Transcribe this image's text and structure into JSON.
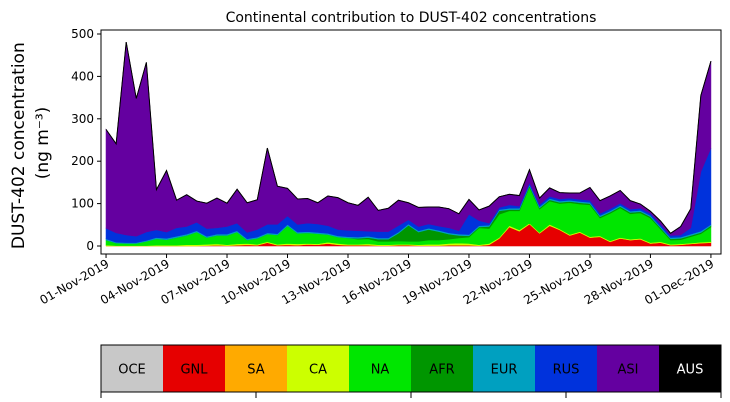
{
  "chart_data": {
    "type": "area",
    "stacked": true,
    "title": "Continental contribution to DUST-402 concentrations",
    "ylabel_line1": "DUST-402 concentration",
    "ylabel_line2": "(ng m⁻³)",
    "ylim": [
      0,
      500
    ],
    "yticks": [
      0,
      100,
      200,
      300,
      400,
      500
    ],
    "xlim": [
      "2019-10-31T18:00",
      "2019-12-01T12:00"
    ],
    "xticks": [
      "2019-11-01",
      "2019-11-04",
      "2019-11-07",
      "2019-11-10",
      "2019-11-13",
      "2019-11-16",
      "2019-11-19",
      "2019-11-22",
      "2019-11-25",
      "2019-11-28",
      "2019-12-01"
    ],
    "xtick_labels": [
      "01-Nov-2019",
      "04-Nov-2019",
      "07-Nov-2019",
      "10-Nov-2019",
      "13-Nov-2019",
      "16-Nov-2019",
      "19-Nov-2019",
      "22-Nov-2019",
      "25-Nov-2019",
      "28-Nov-2019",
      "01-Dec-2019"
    ],
    "grid": false,
    "outline_color": "#000000",
    "x": [
      "2019-11-01T00:00",
      "2019-11-01T12:00",
      "2019-11-02T00:00",
      "2019-11-02T12:00",
      "2019-11-03T00:00",
      "2019-11-03T12:00",
      "2019-11-04T00:00",
      "2019-11-04T12:00",
      "2019-11-05T00:00",
      "2019-11-05T12:00",
      "2019-11-06T00:00",
      "2019-11-06T12:00",
      "2019-11-07T00:00",
      "2019-11-07T12:00",
      "2019-11-08T00:00",
      "2019-11-08T12:00",
      "2019-11-09T00:00",
      "2019-11-09T12:00",
      "2019-11-10T00:00",
      "2019-11-10T12:00",
      "2019-11-11T00:00",
      "2019-11-11T12:00",
      "2019-11-12T00:00",
      "2019-11-12T12:00",
      "2019-11-13T00:00",
      "2019-11-13T12:00",
      "2019-11-14T00:00",
      "2019-11-14T12:00",
      "2019-11-15T00:00",
      "2019-11-15T12:00",
      "2019-11-16T00:00",
      "2019-11-16T12:00",
      "2019-11-17T00:00",
      "2019-11-17T12:00",
      "2019-11-18T00:00",
      "2019-11-18T12:00",
      "2019-11-19T00:00",
      "2019-11-19T12:00",
      "2019-11-20T00:00",
      "2019-11-20T12:00",
      "2019-11-21T00:00",
      "2019-11-21T12:00",
      "2019-11-22T00:00",
      "2019-11-22T12:00",
      "2019-11-23T00:00",
      "2019-11-23T12:00",
      "2019-11-24T00:00",
      "2019-11-24T12:00",
      "2019-11-25T00:00",
      "2019-11-25T12:00",
      "2019-11-26T00:00",
      "2019-11-26T12:00",
      "2019-11-27T00:00",
      "2019-11-27T12:00",
      "2019-11-28T00:00",
      "2019-11-28T12:00",
      "2019-11-29T00:00",
      "2019-11-29T12:00",
      "2019-11-30T00:00",
      "2019-11-30T12:00",
      "2019-12-01T00:00"
    ],
    "series": [
      {
        "name": "OCE",
        "color": "#c8c8c8",
        "values": [
          0,
          0,
          0,
          0,
          0,
          0,
          0,
          0,
          0,
          0,
          0,
          0,
          0,
          0,
          0,
          0,
          0,
          0,
          0,
          0,
          0,
          0,
          0,
          0,
          0,
          0,
          0,
          0,
          0,
          0,
          0,
          0,
          0,
          0,
          0,
          0,
          0,
          0,
          0,
          0,
          0,
          0,
          0,
          0,
          0,
          0,
          0,
          0,
          0,
          0,
          0,
          0,
          0,
          0,
          0,
          0,
          0,
          0,
          0,
          0,
          0
        ]
      },
      {
        "name": "GNL",
        "color": "#e60000",
        "values": [
          0,
          0,
          0,
          0,
          0,
          0,
          0,
          0,
          0,
          0,
          1,
          2,
          1,
          2,
          3,
          2,
          8,
          2,
          3,
          2,
          4,
          3,
          6,
          3,
          2,
          2,
          2,
          1,
          1,
          2,
          2,
          1,
          1,
          1,
          2,
          2,
          2,
          1,
          3,
          18,
          45,
          35,
          52,
          30,
          48,
          38,
          25,
          32,
          20,
          22,
          10,
          18,
          14,
          16,
          6,
          8,
          2,
          3,
          5,
          7,
          8
        ]
      },
      {
        "name": "SA",
        "color": "#ffaa00",
        "values": [
          0,
          0,
          0,
          0,
          0,
          0,
          0,
          0,
          0,
          0,
          0,
          0,
          0,
          0,
          0,
          0,
          0,
          0,
          0,
          0,
          0,
          0,
          0,
          0,
          0,
          0,
          0,
          0,
          0,
          0,
          0,
          0,
          0,
          0,
          0,
          0,
          0,
          0,
          0,
          0,
          0,
          0,
          0,
          0,
          0,
          0,
          0,
          0,
          0,
          0,
          0,
          0,
          0,
          0,
          0,
          0,
          0,
          0,
          0,
          0,
          0
        ]
      },
      {
        "name": "CA",
        "color": "#ccff00",
        "values": [
          2,
          1,
          1,
          1,
          1,
          2,
          2,
          2,
          3,
          3,
          3,
          3,
          2,
          3,
          3,
          2,
          2,
          2,
          3,
          3,
          2,
          2,
          3,
          3,
          2,
          2,
          3,
          2,
          2,
          2,
          2,
          2,
          3,
          3,
          4,
          5,
          4,
          2,
          3,
          2,
          3,
          3,
          2,
          2,
          3,
          2,
          2,
          2,
          2,
          2,
          2,
          2,
          2,
          2,
          2,
          2,
          2,
          2,
          2,
          2,
          2
        ]
      },
      {
        "name": "NA",
        "color": "#00e600",
        "values": [
          12,
          6,
          5,
          5,
          10,
          15,
          13,
          18,
          22,
          30,
          16,
          20,
          22,
          28,
          8,
          14,
          18,
          22,
          42,
          25,
          25,
          24,
          18,
          15,
          15,
          12,
          12,
          8,
          8,
          8,
          7,
          8,
          10,
          10,
          10,
          12,
          15,
          40,
          35,
          55,
          35,
          45,
          85,
          55,
          55,
          60,
          75,
          65,
          75,
          42,
          65,
          70,
          60,
          60,
          58,
          30,
          10,
          10,
          15,
          20,
          35
        ]
      },
      {
        "name": "AFR",
        "color": "#009600",
        "values": [
          0,
          0,
          0,
          0,
          0,
          0,
          0,
          0,
          0,
          0,
          0,
          0,
          0,
          0,
          0,
          0,
          0,
          0,
          0,
          0,
          0,
          0,
          0,
          0,
          0,
          2,
          3,
          5,
          5,
          18,
          38,
          22,
          25,
          20,
          12,
          6,
          3,
          2,
          5,
          8,
          3,
          3,
          3,
          3,
          3,
          3,
          3,
          3,
          3,
          3,
          3,
          3,
          3,
          3,
          3,
          3,
          3,
          3,
          3,
          3,
          3
        ]
      },
      {
        "name": "EUR",
        "color": "#00a0c0",
        "values": [
          3,
          2,
          2,
          2,
          2,
          3,
          3,
          3,
          3,
          3,
          3,
          3,
          3,
          3,
          3,
          3,
          3,
          3,
          3,
          3,
          3,
          3,
          3,
          3,
          3,
          3,
          3,
          3,
          3,
          3,
          3,
          3,
          3,
          3,
          3,
          3,
          3,
          3,
          3,
          3,
          3,
          3,
          3,
          3,
          3,
          3,
          3,
          3,
          3,
          3,
          3,
          3,
          3,
          3,
          3,
          3,
          3,
          3,
          3,
          3,
          3
        ]
      },
      {
        "name": "RUS",
        "color": "#0032dc",
        "values": [
          25,
          22,
          18,
          15,
          20,
          18,
          15,
          20,
          18,
          20,
          18,
          15,
          18,
          18,
          15,
          18,
          20,
          22,
          20,
          18,
          20,
          20,
          18,
          15,
          15,
          15,
          12,
          15,
          15,
          15,
          10,
          10,
          10,
          10,
          12,
          8,
          48,
          12,
          5,
          5,
          8,
          5,
          5,
          5,
          5,
          5,
          5,
          5,
          5,
          5,
          5,
          5,
          5,
          5,
          5,
          5,
          5,
          5,
          15,
          140,
          180
        ]
      },
      {
        "name": "ASI",
        "color": "#6400a0",
        "values": [
          233,
          210,
          455,
          325,
          400,
          95,
          145,
          65,
          75,
          50,
          60,
          70,
          55,
          80,
          70,
          70,
          180,
          90,
          65,
          60,
          58,
          50,
          70,
          75,
          65,
          60,
          80,
          50,
          55,
          60,
          40,
          45,
          40,
          45,
          45,
          40,
          35,
          25,
          40,
          25,
          25,
          25,
          30,
          15,
          20,
          15,
          12,
          15,
          30,
          30,
          30,
          30,
          20,
          10,
          5,
          8,
          5,
          20,
          45,
          180,
          205
        ]
      },
      {
        "name": "AUS",
        "color": "#000000",
        "values": [
          0,
          0,
          0,
          0,
          0,
          0,
          0,
          0,
          0,
          0,
          0,
          0,
          0,
          0,
          0,
          0,
          0,
          0,
          0,
          0,
          0,
          0,
          0,
          0,
          0,
          0,
          0,
          0,
          0,
          0,
          0,
          0,
          0,
          0,
          0,
          0,
          0,
          0,
          0,
          0,
          0,
          0,
          0,
          0,
          0,
          0,
          0,
          0,
          0,
          0,
          0,
          0,
          0,
          0,
          0,
          0,
          0,
          0,
          0,
          0,
          0
        ]
      }
    ],
    "legend": {
      "placement": "bottom",
      "entries": [
        {
          "label": "OCE",
          "color": "#c8c8c8",
          "text_color": "#000000"
        },
        {
          "label": "GNL",
          "color": "#e60000",
          "text_color": "#000000"
        },
        {
          "label": "SA",
          "color": "#ffaa00",
          "text_color": "#000000"
        },
        {
          "label": "CA",
          "color": "#ccff00",
          "text_color": "#000000"
        },
        {
          "label": "NA",
          "color": "#00e600",
          "text_color": "#000000"
        },
        {
          "label": "AFR",
          "color": "#009600",
          "text_color": "#000000"
        },
        {
          "label": "EUR",
          "color": "#00a0c0",
          "text_color": "#000000"
        },
        {
          "label": "RUS",
          "color": "#0032dc",
          "text_color": "#000000"
        },
        {
          "label": "ASI",
          "color": "#6400a0",
          "text_color": "#000000"
        },
        {
          "label": "AUS",
          "color": "#000000",
          "text_color": "#ffffff"
        }
      ]
    }
  }
}
